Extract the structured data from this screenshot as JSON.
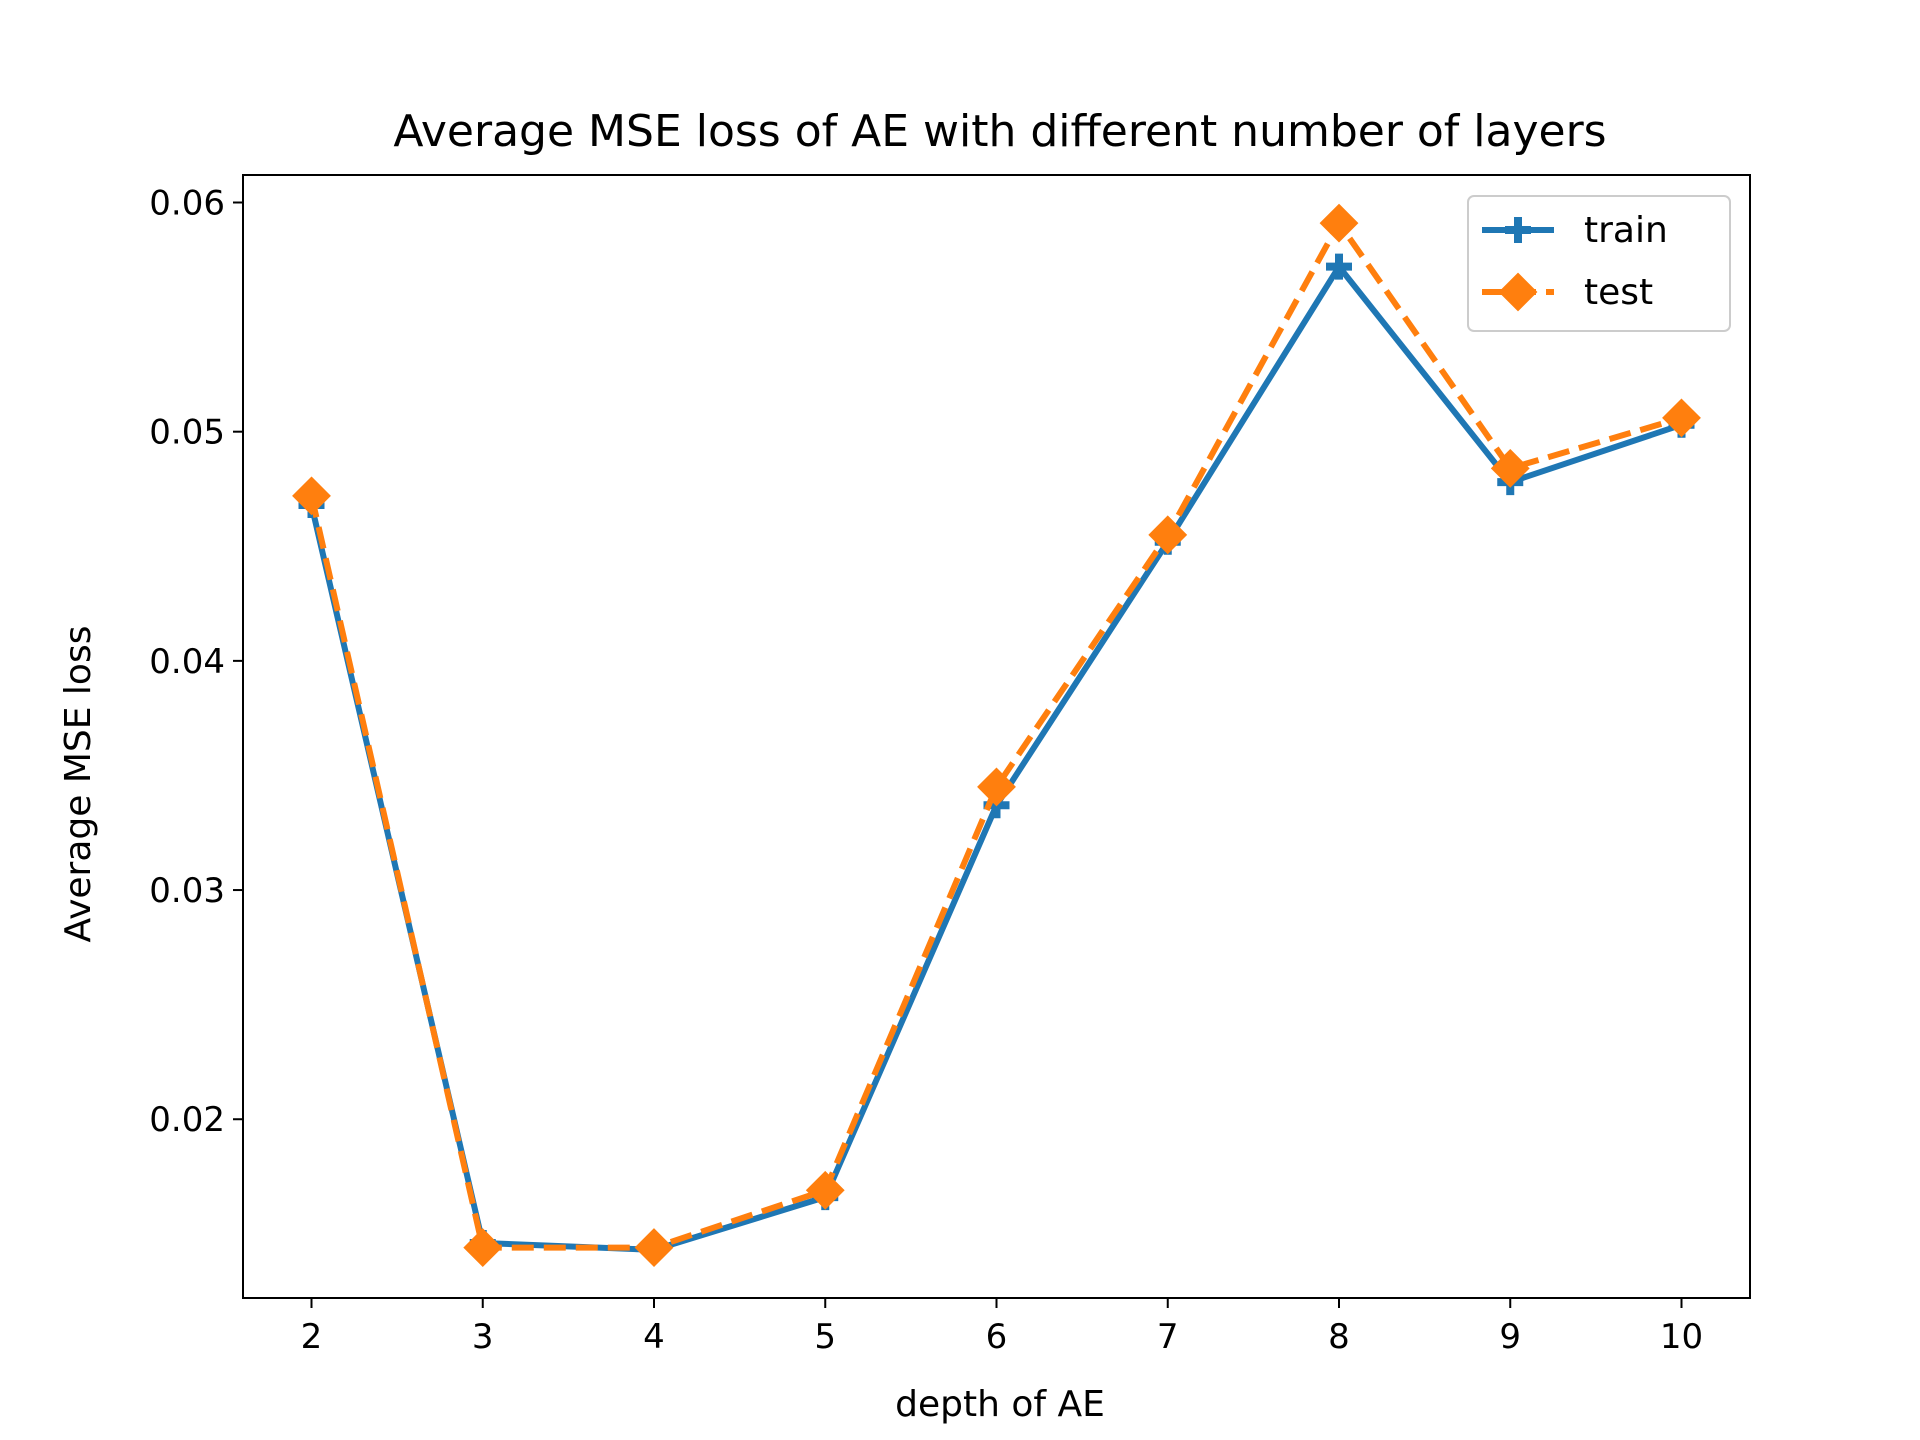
{
  "chart_data": {
    "type": "line",
    "title": "Average MSE loss of AE with different number of layers",
    "xlabel": "depth of AE",
    "ylabel": "Average MSE loss",
    "x": [
      2,
      3,
      4,
      5,
      6,
      7,
      8,
      9,
      10
    ],
    "xlim": [
      1.6,
      10.4
    ],
    "ylim": [
      0.0122,
      0.0612
    ],
    "xticks": [
      "2",
      "3",
      "4",
      "5",
      "6",
      "7",
      "8",
      "9",
      "10"
    ],
    "yticks": [
      {
        "value": 0.02,
        "label": "0.02"
      },
      {
        "value": 0.03,
        "label": "0.03"
      },
      {
        "value": 0.04,
        "label": "0.04"
      },
      {
        "value": 0.05,
        "label": "0.05"
      },
      {
        "value": 0.06,
        "label": "0.06"
      }
    ],
    "grid": false,
    "legend_position": "top-right",
    "series": [
      {
        "name": "train",
        "values": [
          0.0468,
          0.0146,
          0.0143,
          0.0166,
          0.0337,
          0.0452,
          0.0572,
          0.0478,
          0.0503
        ],
        "color": "#1f77b4",
        "line_style": "solid",
        "marker": "plus"
      },
      {
        "name": "test",
        "values": [
          0.0472,
          0.0144,
          0.0144,
          0.0169,
          0.0345,
          0.0455,
          0.0591,
          0.0484,
          0.0506
        ],
        "color": "#ff7f0e",
        "line_style": "dashed",
        "marker": "diamond"
      }
    ]
  }
}
